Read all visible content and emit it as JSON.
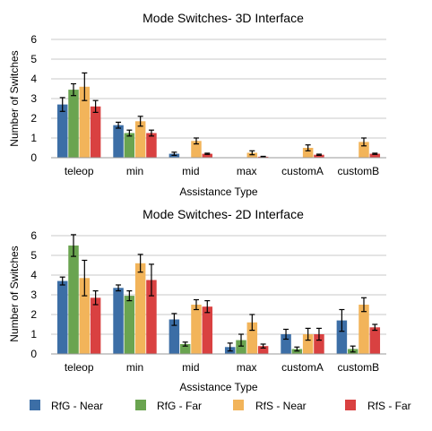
{
  "chart_data": [
    {
      "type": "bar",
      "title": "Mode Switches- 3D Interface",
      "xlabel": "Assistance Type",
      "ylabel": "Number of Switches",
      "ylim": [
        0,
        6
      ],
      "yticks": [
        "0",
        "1",
        "2",
        "3",
        "4",
        "5",
        "6"
      ],
      "grid": true,
      "categories": [
        "teleop",
        "min",
        "mid",
        "max",
        "customA",
        "customB"
      ],
      "series": [
        {
          "name": "RfG - Near",
          "values": [
            2.7,
            1.65,
            0.2,
            0.0,
            0.0,
            0.0
          ],
          "errors": [
            0.35,
            0.15,
            0.08,
            0.0,
            0.0,
            0.0
          ]
        },
        {
          "name": "RfG - Far",
          "values": [
            3.45,
            1.25,
            0.0,
            0.0,
            0.0,
            0.0
          ],
          "errors": [
            0.3,
            0.15,
            0.0,
            0.0,
            0.0,
            0.0
          ]
        },
        {
          "name": "RfS - Near",
          "values": [
            3.6,
            1.85,
            0.85,
            0.25,
            0.5,
            0.8
          ],
          "errors": [
            0.7,
            0.25,
            0.15,
            0.1,
            0.15,
            0.2
          ]
        },
        {
          "name": "RfS - Far",
          "values": [
            2.6,
            1.25,
            0.2,
            0.05,
            0.15,
            0.2
          ],
          "errors": [
            0.3,
            0.15,
            0.03,
            0.02,
            0.03,
            0.03
          ]
        }
      ]
    },
    {
      "type": "bar",
      "title": "Mode Switches- 2D Interface",
      "xlabel": "Assistance Type",
      "ylabel": "Number of Switches",
      "ylim": [
        0,
        6
      ],
      "yticks": [
        "0",
        "1",
        "2",
        "3",
        "4",
        "5",
        "6"
      ],
      "grid": true,
      "categories": [
        "teleop",
        "min",
        "mid",
        "max",
        "customA",
        "customB"
      ],
      "series": [
        {
          "name": "RfG - Near",
          "values": [
            3.7,
            3.35,
            1.75,
            0.35,
            1.0,
            1.7
          ],
          "errors": [
            0.2,
            0.15,
            0.3,
            0.2,
            0.25,
            0.55
          ]
        },
        {
          "name": "RfG - Far",
          "values": [
            5.5,
            2.95,
            0.5,
            0.7,
            0.25,
            0.25
          ],
          "errors": [
            0.55,
            0.25,
            0.1,
            0.3,
            0.1,
            0.15
          ]
        },
        {
          "name": "RfS - Near",
          "values": [
            3.85,
            4.6,
            2.5,
            1.6,
            1.0,
            2.5
          ],
          "errors": [
            0.9,
            0.45,
            0.25,
            0.4,
            0.3,
            0.35
          ]
        },
        {
          "name": "RfS - Far",
          "values": [
            2.85,
            3.75,
            2.4,
            0.4,
            1.0,
            1.35
          ],
          "errors": [
            0.35,
            0.8,
            0.3,
            0.1,
            0.3,
            0.15
          ]
        }
      ]
    }
  ],
  "legend": {
    "items": [
      {
        "label": "RfG - Near",
        "color": "#3c6ea6"
      },
      {
        "label": "RfG - Far",
        "color": "#6aa450"
      },
      {
        "label": "RfS - Near",
        "color": "#f2b45a"
      },
      {
        "label": "RfS - Far",
        "color": "#d94141"
      }
    ]
  },
  "colors": {
    "RfG - Near": "#3c6ea6",
    "RfG - Far": "#6aa450",
    "RfS - Near": "#f2b45a",
    "RfS - Far": "#d94141",
    "grid": "#c8c8c8",
    "axis": "#999999"
  }
}
